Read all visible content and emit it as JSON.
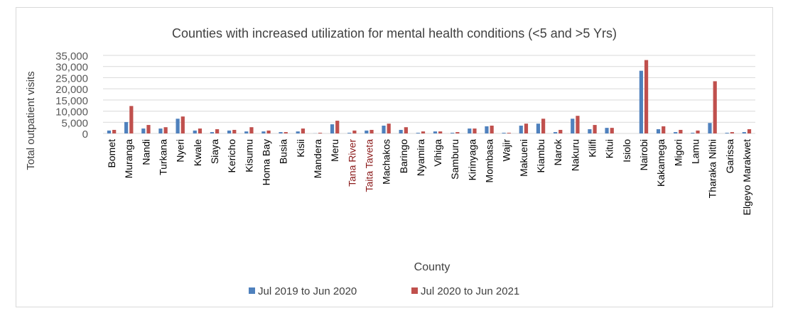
{
  "chart_data": {
    "type": "bar",
    "title": "Counties with increased utilization for  mental health conditions (<5 and >5 Yrs)",
    "xlabel": "County",
    "ylabel": "Total outpatient visits",
    "ylim": [
      0,
      35000
    ],
    "yticks": [
      "0",
      "5,000",
      "10,000",
      "15,000",
      "20,000",
      "25,000",
      "30,000",
      "35,000"
    ],
    "grid": true,
    "legend_position": "bottom",
    "categories": [
      "Bomet",
      "Muranga",
      "Nandi",
      "Turkana",
      "Nyeri",
      "Kwale",
      "Siaya",
      "Kericho",
      "Kisumu",
      "Homa Bay",
      "Busia",
      "Kisii",
      "Mandera",
      "Meru",
      "Tana River",
      "Taita Taveta",
      "Machakos",
      "Baringo",
      "Nyamira",
      "Vihiga",
      "Samburu",
      "Kirinyaga",
      "Mombasa",
      "Wajir",
      "Makueni",
      "Kiambu",
      "Narok",
      "Nakuru",
      "Kilifi",
      "Kitui",
      "Isiolo",
      "Nairobi",
      "Kakamega",
      "Migori",
      "Lamu",
      "Tharaka Nithi",
      "Garissa",
      "Elgeyo Marakwet"
    ],
    "highlighted_categories": [
      "Tana River",
      "Taita Taveta"
    ],
    "series": [
      {
        "name": "Jul 2019 to Jun 2020",
        "color": "#4f81bd",
        "values": [
          1300,
          5100,
          2200,
          2200,
          6600,
          1300,
          600,
          1300,
          900,
          900,
          600,
          900,
          50,
          4100,
          300,
          1300,
          3500,
          1600,
          300,
          900,
          300,
          2200,
          3200,
          300,
          3500,
          4400,
          600,
          6600,
          1900,
          2500,
          0,
          28100,
          1900,
          600,
          300,
          4700,
          300,
          600
        ]
      },
      {
        "name": "Jul 2020 to Jun 2021",
        "color": "#c0504d",
        "values": [
          1600,
          12300,
          3800,
          2800,
          7600,
          2200,
          1900,
          1600,
          2800,
          1300,
          600,
          2200,
          300,
          5700,
          1300,
          1600,
          4400,
          2800,
          900,
          900,
          600,
          2200,
          3500,
          300,
          4400,
          6600,
          1600,
          7900,
          3800,
          2500,
          0,
          32900,
          3200,
          1600,
          1300,
          23400,
          600,
          1900
        ]
      }
    ]
  }
}
